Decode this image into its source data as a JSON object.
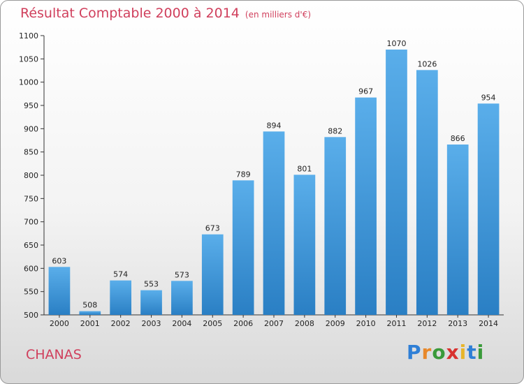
{
  "header": {
    "title": "Résultat Comptable 2000 à 2014",
    "subtitle": "(en milliers d'€)"
  },
  "footer": {
    "commune": "CHANAS",
    "logo_text": "Proxiti"
  },
  "colors": {
    "title": "#d03f5c",
    "bar_top": "#5aaeea",
    "bar_bottom": "#2a7fc4",
    "grid": "#333333"
  },
  "chart_data": {
    "type": "bar",
    "title": "Résultat Comptable 2000 à 2014",
    "subtitle": "(en milliers d'€)",
    "xlabel": "",
    "ylabel": "",
    "categories": [
      "2000",
      "2001",
      "2002",
      "2003",
      "2004",
      "2005",
      "2006",
      "2007",
      "2008",
      "2009",
      "2010",
      "2011",
      "2012",
      "2013",
      "2014"
    ],
    "values": [
      603,
      508,
      574,
      553,
      573,
      673,
      789,
      894,
      801,
      882,
      967,
      1070,
      1026,
      866,
      954
    ],
    "ylim": [
      500,
      1100
    ],
    "yticks": [
      500,
      550,
      600,
      650,
      700,
      750,
      800,
      850,
      900,
      950,
      1000,
      1050,
      1100
    ],
    "grid": false,
    "legend": "none"
  }
}
